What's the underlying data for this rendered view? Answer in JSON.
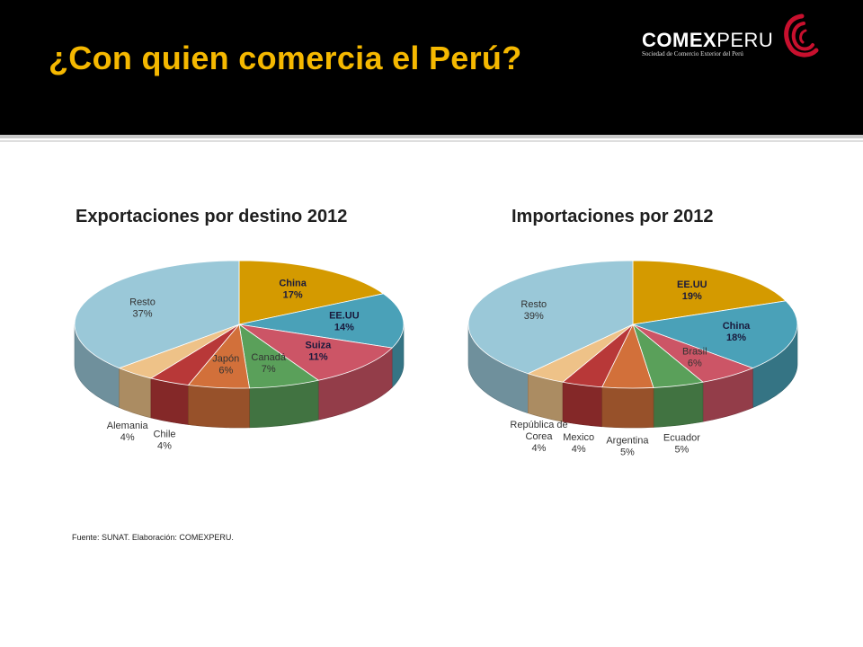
{
  "slide": {
    "title": "¿Con quien comercia el Perú?",
    "source": "Fuente: SUNAT. Elaboración: COMEXPERU."
  },
  "logo": {
    "name_bold": "COMEX",
    "name_light": "PERU",
    "tagline": "Sociedad de Comercio Exterior del Perú",
    "accent_color": "#c8102e"
  },
  "colors": {
    "title": "#f5b800",
    "header_bg": "#000000"
  },
  "chart_data": [
    {
      "type": "pie",
      "title": "Exportaciones por destino 2012",
      "labels": [
        "China",
        "EE.UU",
        "Suiza",
        "Canadá",
        "Japón",
        "Chile",
        "Alemania",
        "Resto"
      ],
      "values": [
        17,
        14,
        11,
        7,
        6,
        4,
        4,
        37
      ],
      "value_labels": [
        "17%",
        "14%",
        "11%",
        "7%",
        "6%",
        "4%",
        "4%",
        "37%"
      ],
      "colors": [
        "#d49a00",
        "#4aa1b8",
        "#cc5566",
        "#5aa05a",
        "#d2703a",
        "#b83838",
        "#eec288",
        "#9ac8d8"
      ],
      "bold": [
        true,
        true,
        true,
        false,
        false,
        false,
        false,
        false
      ]
    },
    {
      "type": "pie",
      "title": "Importaciones por 2012",
      "labels": [
        "EE.UU",
        "China",
        "Brasil",
        "Ecuador",
        "Argentina",
        "Mexico",
        "República de Corea",
        "Resto"
      ],
      "values": [
        19,
        18,
        6,
        5,
        5,
        4,
        4,
        39
      ],
      "value_labels": [
        "19%",
        "18%",
        "6%",
        "5%",
        "5%",
        "4%",
        "4%",
        "39%"
      ],
      "colors": [
        "#d49a00",
        "#4aa1b8",
        "#cc5566",
        "#5aa05a",
        "#d2703a",
        "#b83838",
        "#eec288",
        "#9ac8d8"
      ],
      "bold": [
        true,
        true,
        false,
        false,
        false,
        false,
        false,
        false
      ]
    }
  ]
}
